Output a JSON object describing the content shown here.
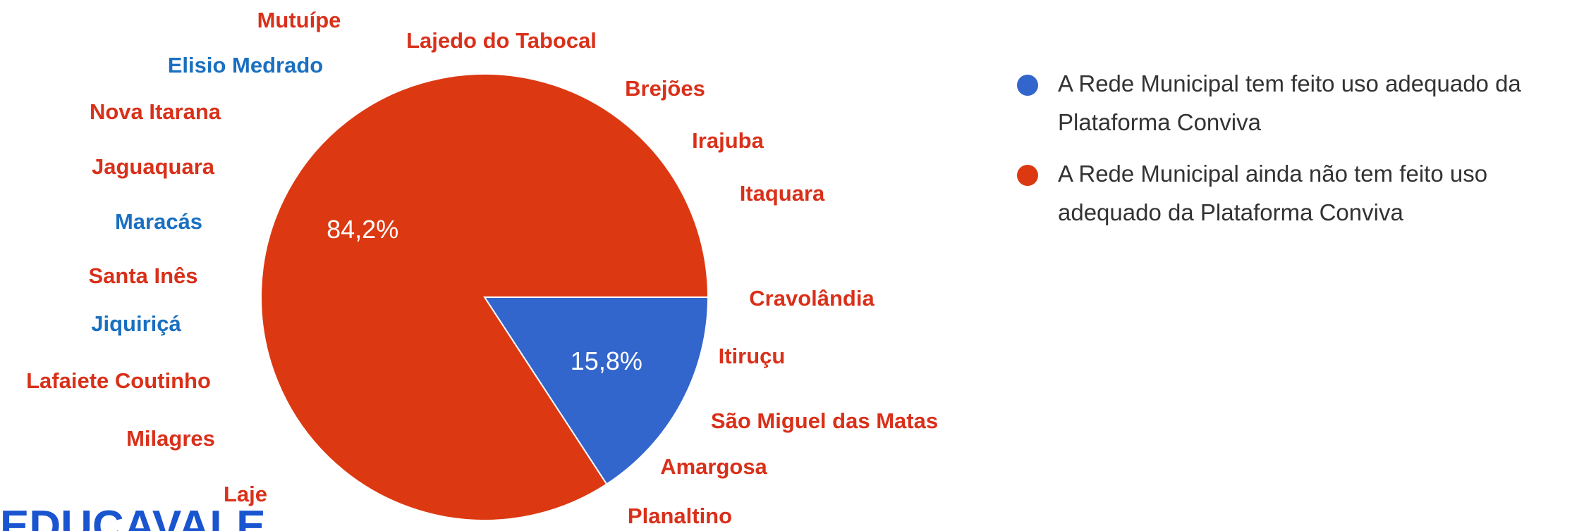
{
  "chart_data": {
    "type": "pie",
    "categories": [
      "A Rede Municipal tem feito uso adequado da Plataforma Conviva",
      "A Rede Municipal ainda não tem feito uso adequado da Plataforma Conviva"
    ],
    "values": [
      15.8,
      84.2
    ],
    "value_labels": [
      "15,8%",
      "84,2%"
    ],
    "colors": [
      "#3366cc",
      "#dc3912"
    ],
    "annotations": [
      {
        "text": "Mutuípe",
        "color": "#d9301a"
      },
      {
        "text": "Lajedo do Tabocal",
        "color": "#d9301a"
      },
      {
        "text": "Elisio Medrado",
        "color": "#1a6fc0"
      },
      {
        "text": "Brejões",
        "color": "#d9301a"
      },
      {
        "text": "Nova Itarana",
        "color": "#d9301a"
      },
      {
        "text": "Irajuba",
        "color": "#d9301a"
      },
      {
        "text": "Jaguaquara",
        "color": "#d9301a"
      },
      {
        "text": "Itaquara",
        "color": "#d9301a"
      },
      {
        "text": "Maracás",
        "color": "#1a6fc0"
      },
      {
        "text": "Santa Inês",
        "color": "#d9301a"
      },
      {
        "text": "Cravolândia",
        "color": "#d9301a"
      },
      {
        "text": "Jiquiriçá",
        "color": "#1a6fc0"
      },
      {
        "text": "Itiruçu",
        "color": "#d9301a"
      },
      {
        "text": "Lafaiete Coutinho",
        "color": "#d9301a"
      },
      {
        "text": "São Miguel das Matas",
        "color": "#d9301a"
      },
      {
        "text": "Milagres",
        "color": "#d9301a"
      },
      {
        "text": "Amargosa",
        "color": "#d9301a"
      },
      {
        "text": "Laje",
        "color": "#d9301a"
      },
      {
        "text": "Planaltino",
        "color": "#d9301a"
      }
    ],
    "watermark": "EDUCAVALE"
  }
}
